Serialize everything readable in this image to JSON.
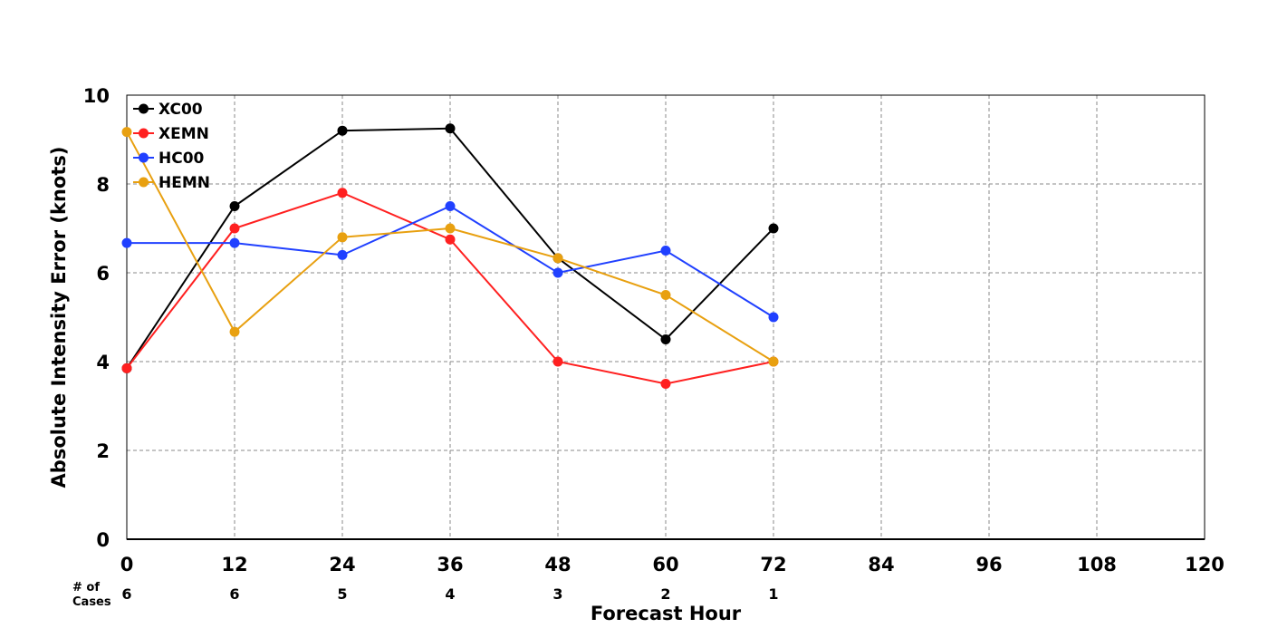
{
  "chart_data": {
    "type": "line",
    "title": "",
    "xlabel": "Forecast Hour",
    "ylabel": "Absolute Intensity Error (knots)",
    "xlim": [
      0,
      120
    ],
    "ylim": [
      0,
      10
    ],
    "x_ticks": [
      0,
      12,
      24,
      36,
      48,
      60,
      72,
      84,
      96,
      108,
      120
    ],
    "y_ticks": [
      0,
      2,
      4,
      6,
      8,
      10
    ],
    "grid": true,
    "legend_position": "top-left",
    "cases_label_line1": "# of",
    "cases_label_line2": "Cases",
    "cases": [
      {
        "x": 0,
        "n": "6"
      },
      {
        "x": 12,
        "n": "6"
      },
      {
        "x": 24,
        "n": "5"
      },
      {
        "x": 36,
        "n": "4"
      },
      {
        "x": 48,
        "n": "3"
      },
      {
        "x": 60,
        "n": "2"
      },
      {
        "x": 72,
        "n": "1"
      }
    ],
    "series": [
      {
        "name": "XC00",
        "color": "#000000",
        "x": [
          0,
          12,
          24,
          36,
          48,
          60,
          72
        ],
        "values": [
          3.85,
          7.5,
          9.2,
          9.25,
          6.33,
          4.5,
          7.0
        ]
      },
      {
        "name": "XEMN",
        "color": "#ff2020",
        "x": [
          0,
          12,
          24,
          36,
          48,
          60,
          72
        ],
        "values": [
          3.85,
          7.0,
          7.8,
          6.75,
          4.0,
          3.5,
          4.0
        ]
      },
      {
        "name": "HC00",
        "color": "#2040ff",
        "x": [
          0,
          12,
          24,
          36,
          48,
          60,
          72
        ],
        "values": [
          6.67,
          6.67,
          6.4,
          7.5,
          6.0,
          6.5,
          5.0
        ]
      },
      {
        "name": "HEMN",
        "color": "#e8a010",
        "x": [
          0,
          12,
          24,
          36,
          48,
          60,
          72
        ],
        "values": [
          9.17,
          4.67,
          6.8,
          7.0,
          6.33,
          5.5,
          4.0
        ]
      }
    ]
  }
}
